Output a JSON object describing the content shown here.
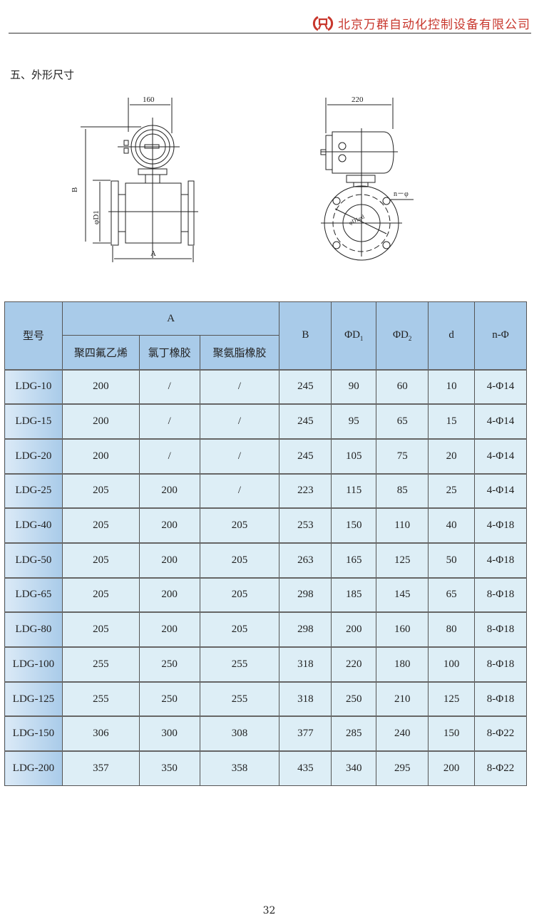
{
  "header": {
    "company": "北京万群自动化控制设备有限公司",
    "logo_color": "#c8372d"
  },
  "section_title": "五、外形尺寸",
  "diagram_front": {
    "width_label": "160",
    "height_label": "B",
    "diameter_label": "φD1",
    "length_label": "A"
  },
  "diagram_side": {
    "width_label": "220",
    "holes_label": "n－φ",
    "inner_label": "φD1φd"
  },
  "table": {
    "headers": {
      "model": "型号",
      "A": "A",
      "A_sub": [
        "聚四氟乙烯",
        "氯丁橡胶",
        "聚氨脂橡胶"
      ],
      "B": "B",
      "D1": "ΦD",
      "D1_sub": "1",
      "D2": "ΦD",
      "D2_sub": "2",
      "d": "d",
      "n": "n-Φ"
    },
    "rows": [
      [
        "LDG-10",
        "200",
        "/",
        "/",
        "245",
        "90",
        "60",
        "10",
        "4-Φ14"
      ],
      [
        "LDG-15",
        "200",
        "/",
        "/",
        "245",
        "95",
        "65",
        "15",
        "4-Φ14"
      ],
      [
        "LDG-20",
        "200",
        "/",
        "/",
        "245",
        "105",
        "75",
        "20",
        "4-Φ14"
      ],
      [
        "LDG-25",
        "205",
        "200",
        "/",
        "223",
        "115",
        "85",
        "25",
        "4-Φ14"
      ],
      [
        "LDG-40",
        "205",
        "200",
        "205",
        "253",
        "150",
        "110",
        "40",
        "4-Φ18"
      ],
      [
        "LDG-50",
        "205",
        "200",
        "205",
        "263",
        "165",
        "125",
        "50",
        "4-Φ18"
      ],
      [
        "LDG-65",
        "205",
        "200",
        "205",
        "298",
        "185",
        "145",
        "65",
        "8-Φ18"
      ],
      [
        "LDG-80",
        "205",
        "200",
        "205",
        "298",
        "200",
        "160",
        "80",
        "8-Φ18"
      ],
      [
        "LDG-100",
        "255",
        "250",
        "255",
        "318",
        "220",
        "180",
        "100",
        "8-Φ18"
      ],
      [
        "LDG-125",
        "255",
        "250",
        "255",
        "318",
        "250",
        "210",
        "125",
        "8-Φ18"
      ],
      [
        "LDG-150",
        "306",
        "300",
        "308",
        "377",
        "285",
        "240",
        "150",
        "8-Φ22"
      ],
      [
        "LDG-200",
        "357",
        "350",
        "358",
        "435",
        "340",
        "295",
        "200",
        "8-Φ22"
      ]
    ]
  },
  "page_number": "32"
}
